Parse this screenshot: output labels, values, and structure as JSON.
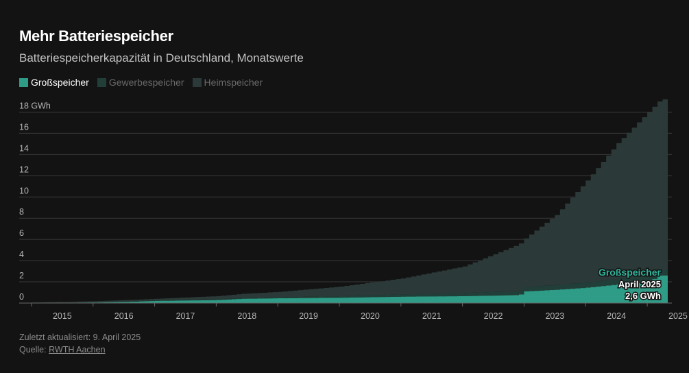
{
  "header": {
    "title": "Mehr Batteriespeicher",
    "subtitle": "Batteriespeicherkapazität in Deutschland, Monatswerte"
  },
  "footer": {
    "updated": "Zuletzt aktualisiert: 9. April 2025",
    "source_prefix": "Quelle: ",
    "source_link": "RWTH Aachen"
  },
  "annotation": {
    "series": "Großspeicher",
    "date": "April 2025",
    "value": "2,6 GWh"
  },
  "colors": {
    "background": "#131313",
    "gross": "#2e9c86",
    "gewerbe": "#223e38",
    "heim": "#2b3a38",
    "grid": "#3a3a3a"
  },
  "chart_data": {
    "type": "area",
    "stacked": true,
    "step": true,
    "frequency": "monthly",
    "x_start": "2015-01",
    "x_end": "2025-04",
    "xlim": [
      2014.8,
      2025.4
    ],
    "ylim": [
      0,
      19
    ],
    "y_ticks": [
      0,
      2,
      4,
      6,
      8,
      10,
      12,
      14,
      16,
      18
    ],
    "y_tick_labels": [
      "0",
      "2",
      "4",
      "6",
      "8",
      "10",
      "12",
      "14",
      "16",
      "18 GWh"
    ],
    "x_tick_labels": [
      "2015",
      "2016",
      "2017",
      "2018",
      "2019",
      "2020",
      "2021",
      "2022",
      "2023",
      "2024",
      "2025"
    ],
    "grid": true,
    "legend": "top-left",
    "series": [
      {
        "name": "Großspeicher",
        "color": "#2e9c86",
        "anchors": [
          [
            2015.0,
            0.0
          ],
          [
            2016.0,
            0.05
          ],
          [
            2016.6,
            0.12
          ],
          [
            2017.0,
            0.2
          ],
          [
            2018.0,
            0.28
          ],
          [
            2018.4,
            0.4
          ],
          [
            2019.0,
            0.45
          ],
          [
            2020.0,
            0.5
          ],
          [
            2021.0,
            0.6
          ],
          [
            2022.0,
            0.65
          ],
          [
            2022.9,
            0.75
          ],
          [
            2023.0,
            1.1
          ],
          [
            2023.5,
            1.25
          ],
          [
            2024.0,
            1.45
          ],
          [
            2024.5,
            1.75
          ],
          [
            2025.0,
            1.95
          ],
          [
            2025.17,
            2.6
          ],
          [
            2025.25,
            2.6
          ]
        ]
      },
      {
        "name": "Gewerbespeicher",
        "color": "#223e38",
        "anchors": [
          [
            2015.0,
            0.0
          ],
          [
            2017.0,
            0.05
          ],
          [
            2019.0,
            0.1
          ],
          [
            2020.0,
            0.15
          ],
          [
            2021.0,
            0.22
          ],
          [
            2022.0,
            0.3
          ],
          [
            2023.0,
            0.4
          ],
          [
            2024.0,
            0.5
          ],
          [
            2025.0,
            0.55
          ],
          [
            2025.25,
            0.6
          ]
        ]
      },
      {
        "name": "Heimspeicher",
        "color": "#2b3a38",
        "anchors": [
          [
            2015.0,
            0.05
          ],
          [
            2016.0,
            0.1
          ],
          [
            2017.0,
            0.15
          ],
          [
            2018.0,
            0.3
          ],
          [
            2019.0,
            0.5
          ],
          [
            2020.0,
            0.9
          ],
          [
            2021.0,
            1.5
          ],
          [
            2022.0,
            2.5
          ],
          [
            2023.0,
            4.6
          ],
          [
            2023.5,
            6.6
          ],
          [
            2024.0,
            9.6
          ],
          [
            2024.5,
            12.8
          ],
          [
            2025.0,
            15.5
          ],
          [
            2025.25,
            16.0
          ]
        ]
      }
    ]
  }
}
